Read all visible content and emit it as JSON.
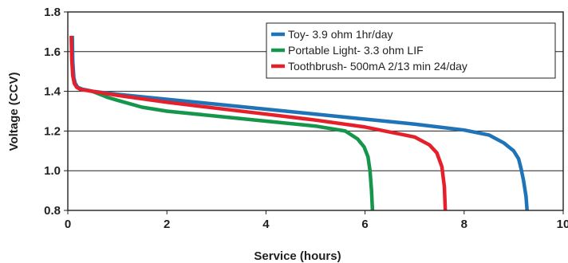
{
  "chart_data": {
    "type": "line",
    "xlabel": "Service (hours)",
    "ylabel": "Voltage (CCV)",
    "xlim": [
      0,
      10
    ],
    "ylim": [
      0.8,
      1.8
    ],
    "x_ticks": [
      0,
      2,
      4,
      6,
      8,
      10
    ],
    "x_tick_labels": [
      "0",
      "2",
      "4",
      "6",
      "8",
      "10"
    ],
    "y_ticks": [
      0.8,
      1.0,
      1.2,
      1.4,
      1.6,
      1.8
    ],
    "y_tick_labels": [
      "0.8",
      "1.0",
      "1.2",
      "1.4",
      "1.6",
      "1.8"
    ],
    "grid": "horizontal",
    "legend_position": "top-right",
    "series": [
      {
        "name": "Toy- 3.9 ohm 1hr/day",
        "color": "#1f73b7",
        "x": [
          0.09,
          0.1,
          0.12,
          0.15,
          0.2,
          0.3,
          0.5,
          1.0,
          2.0,
          3.0,
          4.0,
          5.0,
          6.0,
          7.0,
          8.0,
          8.5,
          8.8,
          9.0,
          9.1,
          9.15,
          9.2,
          9.25,
          9.27
        ],
        "y": [
          1.68,
          1.55,
          1.47,
          1.44,
          1.42,
          1.41,
          1.4,
          1.385,
          1.36,
          1.335,
          1.31,
          1.285,
          1.26,
          1.235,
          1.205,
          1.18,
          1.14,
          1.1,
          1.06,
          1.01,
          0.95,
          0.87,
          0.8
        ]
      },
      {
        "name": "Portable Light- 3.3 ohm LIF",
        "color": "#16964a",
        "x": [
          0.3,
          0.5,
          0.8,
          1.0,
          1.5,
          2.0,
          3.0,
          4.0,
          5.0,
          5.6,
          5.85,
          5.98,
          6.06,
          6.1,
          6.13,
          6.15
        ],
        "y": [
          1.41,
          1.4,
          1.37,
          1.355,
          1.32,
          1.3,
          1.275,
          1.25,
          1.225,
          1.2,
          1.16,
          1.12,
          1.07,
          1.0,
          0.9,
          0.8
        ]
      },
      {
        "name": "Toothbrush- 500mA 2/13 min 24/day",
        "color": "#e5202b",
        "x": [
          0.07,
          0.08,
          0.1,
          0.13,
          0.18,
          0.25,
          0.5,
          1.0,
          2.0,
          3.0,
          4.0,
          5.0,
          6.0,
          7.0,
          7.3,
          7.45,
          7.55,
          7.6,
          7.62
        ],
        "y": [
          1.68,
          1.56,
          1.48,
          1.44,
          1.42,
          1.41,
          1.4,
          1.38,
          1.345,
          1.315,
          1.285,
          1.255,
          1.22,
          1.17,
          1.13,
          1.09,
          1.02,
          0.92,
          0.8
        ]
      }
    ]
  }
}
